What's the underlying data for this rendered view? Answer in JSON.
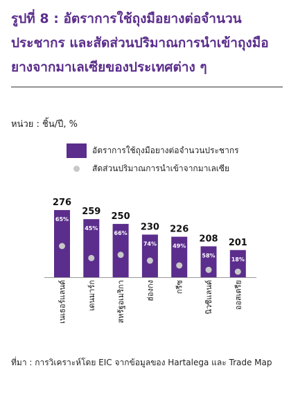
{
  "title": "รูปที่ 8 : อัตราการใช้ถุงมือยางต่อจำนวนประชากร และสัดส่วนปริมาณการนำเข้าถุงมือยางจากมาเลเซียของประเทศต่าง ๆ",
  "unit": "หน่วย : ชิ้น/ปี, %",
  "legend": {
    "bar": "อัตราการใช้ถุงมือยางต่อจำนวนประชากร",
    "dot": "สัดส่วนปริมาณการนำเข้าจากมาเลเซีย"
  },
  "source": "ที่มา : การวิเคราะห์โดย EIC จากข้อมูลของ Hartalega และ Trade Map",
  "colors": {
    "bar": "#5b2d8c",
    "dot": "#c8c8c8",
    "title": "#5b2d8c"
  },
  "chart_data": {
    "type": "bar",
    "categories": [
      "เนเธอร์แลนด์",
      "เดนมาร์ก",
      "สหรัฐอเมริกา",
      "ฮ่องกง",
      "กรีซ",
      "นิวซีแลนด์",
      "ออสเตรีย"
    ],
    "series": [
      {
        "name": "อัตราการใช้ถุงมือยางต่อจำนวนประชากร",
        "values": [
          276,
          259,
          250,
          230,
          226,
          208,
          201
        ]
      },
      {
        "name": "สัดส่วนปริมาณการนำเข้าจากมาเลเซีย",
        "values": [
          65,
          45,
          66,
          74,
          49,
          58,
          18
        ],
        "unit": "%"
      }
    ],
    "bar_labels": [
      "276",
      "259",
      "250",
      "230",
      "226",
      "208",
      "201"
    ],
    "dot_labels": [
      "65%",
      "45%",
      "66%",
      "74%",
      "49%",
      "58%",
      "18%"
    ],
    "ylim": [
      150,
      280
    ],
    "grid": false
  }
}
